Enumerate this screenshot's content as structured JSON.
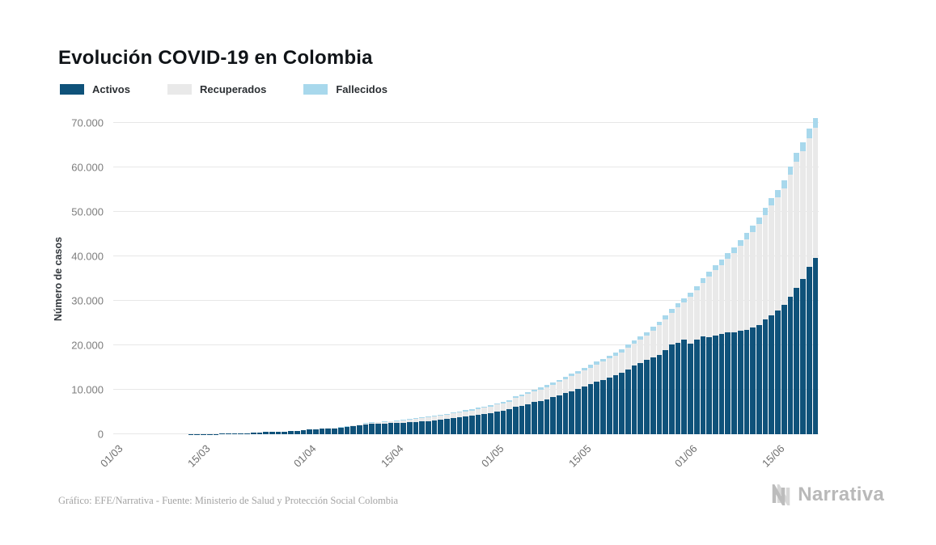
{
  "chart_data": {
    "type": "bar",
    "stacked": true,
    "title": "Evolución COVID-19 en Colombia",
    "xlabel": "",
    "ylabel": "Número de casos",
    "ylim": [
      0,
      70000
    ],
    "grid": true,
    "legend_position": "top-left",
    "y_tick_values": [
      0,
      10000,
      20000,
      30000,
      40000,
      50000,
      60000,
      70000
    ],
    "y_tick_labels": [
      "0",
      "10.000",
      "20.000",
      "30.000",
      "40.000",
      "50.000",
      "60.000",
      "70.000"
    ],
    "x_tick_labels": [
      "01/03",
      "15/03",
      "01/04",
      "15/04",
      "01/05",
      "15/05",
      "01/06",
      "15/06"
    ],
    "x_tick_day_indices": [
      0,
      14,
      31,
      45,
      61,
      75,
      92,
      106
    ],
    "dates": [
      "01/03",
      "02/03",
      "03/03",
      "04/03",
      "05/03",
      "06/03",
      "07/03",
      "08/03",
      "09/03",
      "10/03",
      "11/03",
      "12/03",
      "13/03",
      "14/03",
      "15/03",
      "16/03",
      "17/03",
      "18/03",
      "19/03",
      "20/03",
      "21/03",
      "22/03",
      "23/03",
      "24/03",
      "25/03",
      "26/03",
      "27/03",
      "28/03",
      "29/03",
      "30/03",
      "31/03",
      "01/04",
      "02/04",
      "03/04",
      "04/04",
      "05/04",
      "06/04",
      "07/04",
      "08/04",
      "09/04",
      "10/04",
      "11/04",
      "12/04",
      "13/04",
      "14/04",
      "15/04",
      "16/04",
      "17/04",
      "18/04",
      "19/04",
      "20/04",
      "21/04",
      "22/04",
      "23/04",
      "24/04",
      "25/04",
      "26/04",
      "27/04",
      "28/04",
      "29/04",
      "30/04",
      "01/05",
      "02/05",
      "03/05",
      "04/05",
      "05/05",
      "06/05",
      "07/05",
      "08/05",
      "09/05",
      "10/05",
      "11/05",
      "12/05",
      "13/05",
      "14/05",
      "15/05",
      "16/05",
      "17/05",
      "18/05",
      "19/05",
      "20/05",
      "21/05",
      "22/05",
      "23/05",
      "24/05",
      "25/05",
      "26/05",
      "27/05",
      "28/05",
      "29/05",
      "30/05",
      "31/05",
      "01/06",
      "02/06",
      "03/06",
      "04/06",
      "05/06",
      "06/06",
      "07/06",
      "08/06",
      "09/06",
      "10/06",
      "11/06",
      "12/06",
      "13/06",
      "14/06",
      "15/06",
      "16/06",
      "17/06",
      "18/06",
      "19/06",
      "20/06",
      "21/06"
    ],
    "series": [
      {
        "name": "Activos",
        "color": "#0f527a",
        "values": [
          0,
          0,
          0,
          0,
          0,
          1,
          1,
          1,
          3,
          9,
          9,
          13,
          15,
          23,
          33,
          55,
          73,
          100,
          124,
          154,
          191,
          229,
          297,
          369,
          458,
          477,
          523,
          588,
          682,
          771,
          859,
          1009,
          1087,
          1187,
          1289,
          1362,
          1433,
          1607,
          1876,
          1980,
          2196,
          2395,
          2397,
          2421,
          2498,
          2522,
          2539,
          2652,
          2744,
          2902,
          2984,
          3149,
          3223,
          3419,
          3653,
          3842,
          4002,
          4134,
          4412,
          4599,
          4775,
          5141,
          5295,
          5606,
          6222,
          6414,
          6749,
          7199,
          7481,
          7895,
          8309,
          8808,
          9288,
          9727,
          10210,
          10790,
          11249,
          11800,
          12272,
          12801,
          13247,
          13731,
          14591,
          15432,
          15966,
          16716,
          17190,
          17879,
          18922,
          20218,
          20561,
          21206,
          20405,
          21203,
          22006,
          21910,
          22173,
          22622,
          23001,
          22947,
          23251,
          23413,
          23928,
          24629,
          25797,
          26743,
          27895,
          29026,
          30993,
          32851,
          34988,
          37576,
          39637
        ]
      },
      {
        "name": "Recuperados",
        "color": "#e9e9e9",
        "values": [
          0,
          0,
          0,
          0,
          0,
          0,
          0,
          0,
          0,
          0,
          0,
          0,
          1,
          1,
          1,
          1,
          1,
          1,
          3,
          3,
          3,
          3,
          6,
          6,
          8,
          8,
          10,
          10,
          10,
          15,
          31,
          39,
          55,
          55,
          85,
          88,
          100,
          123,
          123,
          174,
          197,
          214,
          270,
          319,
          354,
          452,
          550,
          634,
          711,
          711,
          804,
          804,
          927,
          927,
          1003,
          1067,
          1133,
          1210,
          1268,
          1330,
          1439,
          1551,
          1666,
          1722,
          2013,
          2148,
          2300,
          2424,
          2569,
          2705,
          2825,
          2971,
          3133,
          3358,
          3460,
          3587,
          3751,
          3903,
          4050,
          4256,
          4431,
          4718,
          4881,
          5016,
          5265,
          5511,
          6111,
          6665,
          6913,
          7128,
          7904,
          8348,
          10459,
          11142,
          12069,
          13638,
          14709,
          15409,
          16459,
          17823,
          19059,
          20366,
          21442,
          22572,
          23550,
          24653,
          25310,
          26219,
          27360,
          28475,
          28600,
          28950,
          29236
        ]
      },
      {
        "name": "Fallecidos",
        "color": "#a8d8ec",
        "values": [
          0,
          0,
          0,
          0,
          0,
          0,
          0,
          0,
          0,
          0,
          0,
          0,
          0,
          0,
          0,
          1,
          1,
          1,
          1,
          1,
          2,
          3,
          3,
          3,
          4,
          6,
          6,
          10,
          10,
          12,
          16,
          17,
          19,
          25,
          32,
          35,
          46,
          50,
          55,
          69,
          80,
          100,
          109,
          112,
          127,
          131,
          144,
          153,
          166,
          179,
          189,
          196,
          206,
          215,
          225,
          233,
          244,
          253,
          269,
          278,
          293,
          314,
          324,
          340,
          378,
          397,
          407,
          428,
          445,
          463,
          479,
          493,
          509,
          525,
          546,
          562,
          574,
          592,
          613,
          630,
          652,
          682,
          705,
          727,
          750,
          776,
          803,
          822,
          853,
          890,
          918,
          939,
          969,
          1009,
          1045,
          1087,
          1145,
          1205,
          1259,
          1308,
          1372,
          1433,
          1488,
          1545,
          1592,
          1667,
          1726,
          1801,
          1864,
          1950,
          2045,
          2126,
          2310
        ]
      }
    ]
  },
  "footer": {
    "source_text": "Gráfico: EFE/Narrativa - Fuente: Ministerio de Salud y Protección Social Colombia",
    "brand": "Narrativa"
  }
}
